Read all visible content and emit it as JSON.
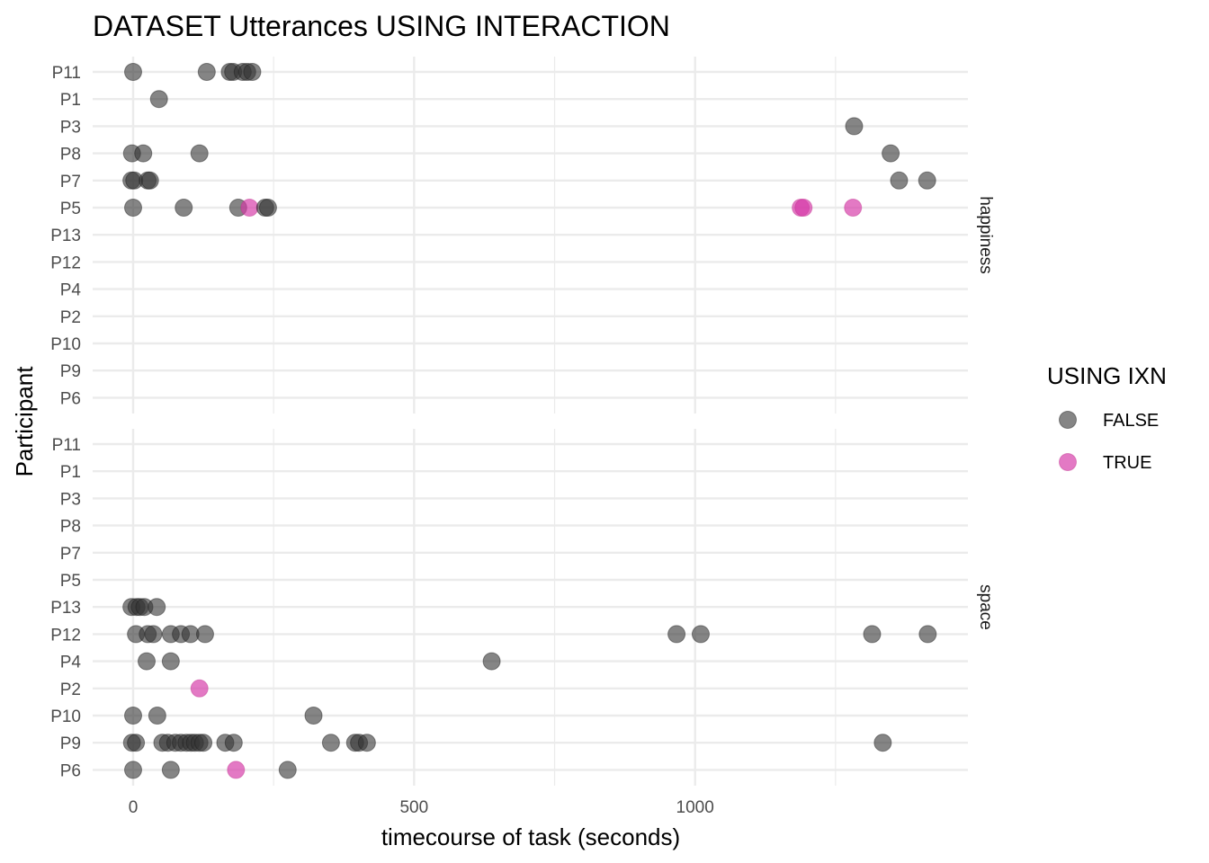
{
  "chart_data": {
    "type": "scatter",
    "title": "DATASET Utterances USING INTERACTION",
    "xlabel": "timecourse of task (seconds)",
    "ylabel": "Participant",
    "xlim": [
      -70,
      1485
    ],
    "x_ticks": [
      0,
      500,
      1000
    ],
    "x_minor_ticks": [
      250,
      750,
      1250
    ],
    "participants": [
      "P11",
      "P1",
      "P3",
      "P8",
      "P7",
      "P5",
      "P13",
      "P12",
      "P4",
      "P2",
      "P10",
      "P9",
      "P6"
    ],
    "grid": true,
    "legend": {
      "title": "USING IXN",
      "position": "right",
      "entries": [
        {
          "label": "FALSE",
          "color": "#333333"
        },
        {
          "label": "TRUE",
          "color": "#d63aa8"
        }
      ]
    },
    "facets": [
      {
        "label": "happiness",
        "points": [
          {
            "y": "P11",
            "x": 0,
            "ixn": false
          },
          {
            "y": "P11",
            "x": 131,
            "ixn": false
          },
          {
            "y": "P11",
            "x": 172,
            "ixn": false
          },
          {
            "y": "P11",
            "x": 178,
            "ixn": false
          },
          {
            "y": "P11",
            "x": 195,
            "ixn": false
          },
          {
            "y": "P11",
            "x": 203,
            "ixn": false
          },
          {
            "y": "P11",
            "x": 212,
            "ixn": false
          },
          {
            "y": "P1",
            "x": 46,
            "ixn": false
          },
          {
            "y": "P3",
            "x": 1283,
            "ixn": false
          },
          {
            "y": "P8",
            "x": -2,
            "ixn": false
          },
          {
            "y": "P8",
            "x": 18,
            "ixn": false
          },
          {
            "y": "P8",
            "x": 118,
            "ixn": false
          },
          {
            "y": "P8",
            "x": 1348,
            "ixn": false
          },
          {
            "y": "P7",
            "x": -3,
            "ixn": false
          },
          {
            "y": "P7",
            "x": 2,
            "ixn": false
          },
          {
            "y": "P7",
            "x": 26,
            "ixn": false
          },
          {
            "y": "P7",
            "x": 30,
            "ixn": false
          },
          {
            "y": "P7",
            "x": 1363,
            "ixn": false
          },
          {
            "y": "P7",
            "x": 1413,
            "ixn": false
          },
          {
            "y": "P5",
            "x": 0,
            "ixn": false
          },
          {
            "y": "P5",
            "x": 90,
            "ixn": false
          },
          {
            "y": "P5",
            "x": 187,
            "ixn": false
          },
          {
            "y": "P5",
            "x": 207,
            "ixn": true
          },
          {
            "y": "P5",
            "x": 235,
            "ixn": false
          },
          {
            "y": "P5",
            "x": 240,
            "ixn": false
          },
          {
            "y": "P5",
            "x": 1188,
            "ixn": true
          },
          {
            "y": "P5",
            "x": 1193,
            "ixn": true
          },
          {
            "y": "P5",
            "x": 1281,
            "ixn": true
          }
        ]
      },
      {
        "label": "space",
        "points": [
          {
            "y": "P13",
            "x": -3,
            "ixn": false
          },
          {
            "y": "P13",
            "x": 6,
            "ixn": false
          },
          {
            "y": "P13",
            "x": 12,
            "ixn": false
          },
          {
            "y": "P13",
            "x": 20,
            "ixn": false
          },
          {
            "y": "P13",
            "x": 42,
            "ixn": false
          },
          {
            "y": "P12",
            "x": 5,
            "ixn": false
          },
          {
            "y": "P12",
            "x": 26,
            "ixn": false
          },
          {
            "y": "P12",
            "x": 36,
            "ixn": false
          },
          {
            "y": "P12",
            "x": 67,
            "ixn": false
          },
          {
            "y": "P12",
            "x": 85,
            "ixn": false
          },
          {
            "y": "P12",
            "x": 102,
            "ixn": false
          },
          {
            "y": "P12",
            "x": 128,
            "ixn": false
          },
          {
            "y": "P12",
            "x": 967,
            "ixn": false
          },
          {
            "y": "P12",
            "x": 1010,
            "ixn": false
          },
          {
            "y": "P12",
            "x": 1315,
            "ixn": false
          },
          {
            "y": "P12",
            "x": 1414,
            "ixn": false
          },
          {
            "y": "P4",
            "x": 24,
            "ixn": false
          },
          {
            "y": "P4",
            "x": 67,
            "ixn": false
          },
          {
            "y": "P4",
            "x": 638,
            "ixn": false
          },
          {
            "y": "P2",
            "x": 118,
            "ixn": true
          },
          {
            "y": "P10",
            "x": 0,
            "ixn": false
          },
          {
            "y": "P10",
            "x": 43,
            "ixn": false
          },
          {
            "y": "P10",
            "x": 321,
            "ixn": false
          },
          {
            "y": "P9",
            "x": -2,
            "ixn": false
          },
          {
            "y": "P9",
            "x": 5,
            "ixn": false
          },
          {
            "y": "P9",
            "x": 52,
            "ixn": false
          },
          {
            "y": "P9",
            "x": 62,
            "ixn": false
          },
          {
            "y": "P9",
            "x": 75,
            "ixn": false
          },
          {
            "y": "P9",
            "x": 85,
            "ixn": false
          },
          {
            "y": "P9",
            "x": 95,
            "ixn": false
          },
          {
            "y": "P9",
            "x": 103,
            "ixn": false
          },
          {
            "y": "P9",
            "x": 110,
            "ixn": false
          },
          {
            "y": "P9",
            "x": 118,
            "ixn": false
          },
          {
            "y": "P9",
            "x": 125,
            "ixn": false
          },
          {
            "y": "P9",
            "x": 164,
            "ixn": false
          },
          {
            "y": "P9",
            "x": 179,
            "ixn": false
          },
          {
            "y": "P9",
            "x": 352,
            "ixn": false
          },
          {
            "y": "P9",
            "x": 395,
            "ixn": false
          },
          {
            "y": "P9",
            "x": 402,
            "ixn": false
          },
          {
            "y": "P9",
            "x": 416,
            "ixn": false
          },
          {
            "y": "P9",
            "x": 1334,
            "ixn": false
          },
          {
            "y": "P6",
            "x": 0,
            "ixn": false
          },
          {
            "y": "P6",
            "x": 67,
            "ixn": false
          },
          {
            "y": "P6",
            "x": 183,
            "ixn": true
          },
          {
            "y": "P6",
            "x": 275,
            "ixn": false
          }
        ]
      }
    ]
  }
}
